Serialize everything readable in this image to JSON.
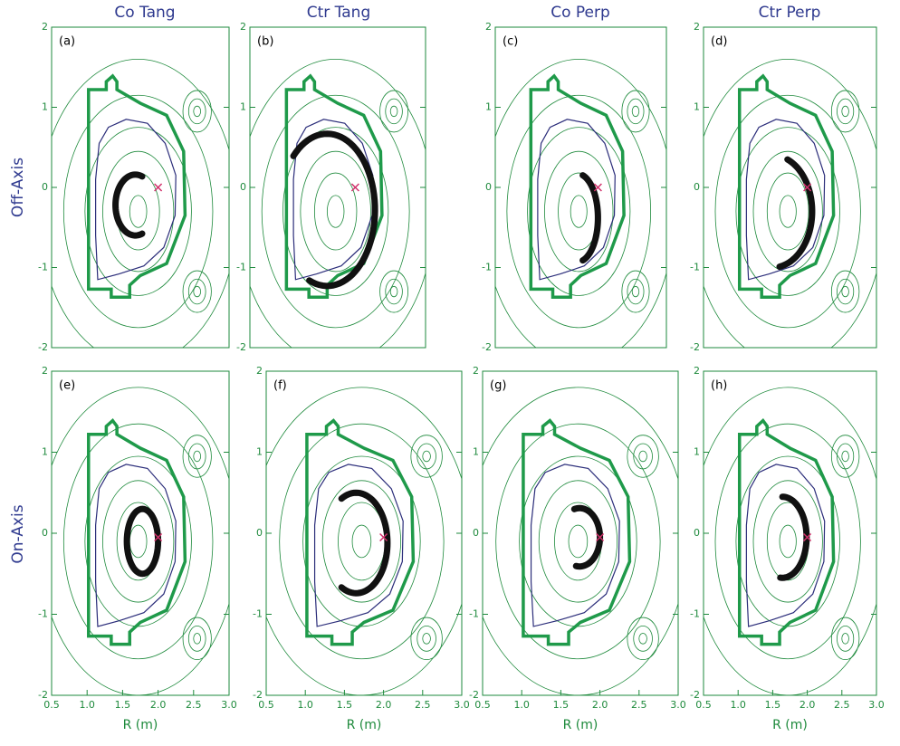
{
  "column_titles": [
    "Co Tang",
    "Ctr Tang",
    "Co Perp",
    "Ctr Perp"
  ],
  "row_titles": [
    "Off-Axis",
    "On-Axis"
  ],
  "chart_data": [
    {
      "type": "contour",
      "panel_label": "(a)",
      "xlim": [
        0.5,
        3.0
      ],
      "ylim": [
        -2,
        2
      ],
      "yticks": [
        -2,
        -1,
        0,
        1,
        2
      ]
    },
    {
      "type": "contour",
      "panel_label": "(b)",
      "xlim": [
        0.5,
        3.0
      ],
      "ylim": [
        -2,
        2
      ],
      "yticks": [
        -2,
        -1,
        0,
        1,
        2
      ]
    },
    {
      "type": "contour",
      "panel_label": "(c)",
      "xlim": [
        0.5,
        3.0
      ],
      "ylim": [
        -2,
        2
      ],
      "yticks": [
        -2,
        -1,
        0,
        1,
        2
      ]
    },
    {
      "type": "contour",
      "panel_label": "(d)",
      "xlim": [
        0.5,
        3.0
      ],
      "ylim": [
        -2,
        2
      ],
      "yticks": [
        -2,
        -1,
        0,
        1,
        2
      ]
    },
    {
      "type": "contour",
      "panel_label": "(e)",
      "xlim": [
        0.5,
        3.0
      ],
      "ylim": [
        -2,
        2
      ],
      "yticks": [
        -2,
        -1,
        0,
        1,
        2
      ],
      "xlabel": "R (m)",
      "xticks": [
        0.5,
        {
          "value": 1,
          "label": "1.0"
        },
        1.5,
        {
          "value": 2,
          "label": "2.0"
        },
        2.5,
        {
          "value": 3,
          "label": "3.0"
        }
      ]
    },
    {
      "type": "contour",
      "panel_label": "(f)",
      "xlim": [
        0.5,
        3.0
      ],
      "ylim": [
        -2,
        2
      ],
      "yticks": [
        -2,
        -1,
        0,
        1,
        2
      ],
      "xlabel": "R (m)",
      "xticks": [
        0.5,
        {
          "value": 1,
          "label": "1.0"
        },
        1.5,
        {
          "value": 2,
          "label": "2.0"
        },
        2.5,
        {
          "value": 3,
          "label": "3.0"
        }
      ]
    },
    {
      "type": "contour",
      "panel_label": "(g)",
      "xlim": [
        0.5,
        3.0
      ],
      "ylim": [
        -2,
        2
      ],
      "yticks": [
        -2,
        -1,
        0,
        1,
        2
      ],
      "xlabel": "R (m)",
      "xticks": [
        0.5,
        {
          "value": 1,
          "label": "1.0"
        },
        1.5,
        {
          "value": 2,
          "label": "2.0"
        },
        2.5,
        {
          "value": 3,
          "label": "3.0"
        }
      ]
    },
    {
      "type": "contour",
      "panel_label": "(h)",
      "xlim": [
        0.5,
        3.0
      ],
      "ylim": [
        -2,
        2
      ],
      "yticks": [
        -2,
        -1,
        0,
        1,
        2
      ],
      "xlabel": "R (m)",
      "xticks": [
        0.5,
        {
          "value": 1,
          "label": "1.0"
        },
        1.5,
        {
          "value": 2,
          "label": "2.0"
        },
        2.5,
        {
          "value": 3,
          "label": "3.0"
        }
      ]
    }
  ]
}
